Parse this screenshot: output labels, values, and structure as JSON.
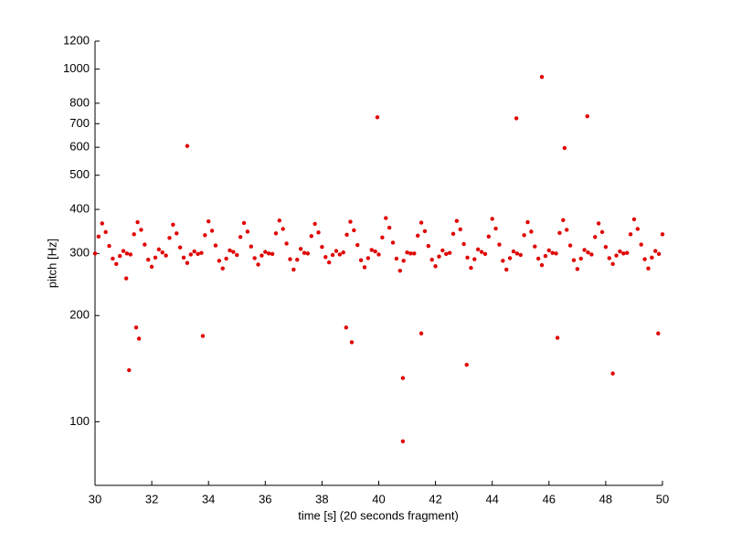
{
  "chart_data": {
    "type": "scatter",
    "xlabel": "time [s] (20 seconds fragment)",
    "ylabel": "pitch [Hz]",
    "xlim": [
      30,
      50
    ],
    "xticks": [
      30,
      32,
      34,
      36,
      38,
      40,
      42,
      44,
      46,
      48,
      50
    ],
    "ylim": [
      66,
      1200
    ],
    "yticks": [
      100,
      200,
      300,
      400,
      500,
      600,
      700,
      800,
      1000,
      1200
    ],
    "log_y": true,
    "grid": false,
    "series": [
      {
        "color": "#e00000",
        "x": [
          30,
          30.125,
          30.25,
          30.375,
          30.5,
          30.625,
          30.75,
          30.875,
          31,
          31.125,
          31.25,
          31.375,
          31.5,
          31.625,
          31.75,
          31.875,
          32,
          32.125,
          32.25,
          32.375,
          32.5,
          32.625,
          32.75,
          32.875,
          33,
          33.125,
          33.25,
          33.375,
          33.5,
          33.625,
          33.75,
          33.875,
          34,
          34.125,
          34.25,
          34.375,
          34.5,
          34.625,
          34.75,
          34.875,
          35,
          35.125,
          35.25,
          35.375,
          35.5,
          35.625,
          35.75,
          35.875,
          36,
          36.125,
          36.25,
          36.375,
          36.5,
          36.625,
          36.75,
          36.875,
          37,
          37.125,
          37.25,
          37.375,
          37.5,
          37.625,
          37.75,
          37.875,
          38,
          38.125,
          38.25,
          38.375,
          38.5,
          38.625,
          38.75,
          38.875,
          39,
          39.125,
          39.25,
          39.375,
          39.5,
          39.625,
          39.75,
          39.875,
          40,
          40.125,
          40.25,
          40.375,
          40.5,
          40.625,
          40.75,
          40.875,
          41,
          41.125,
          41.25,
          41.375,
          41.5,
          41.625,
          41.75,
          41.875,
          42,
          42.125,
          42.25,
          42.375,
          42.5,
          42.625,
          42.75,
          42.875,
          43,
          43.125,
          43.25,
          43.375,
          43.5,
          43.625,
          43.75,
          43.875,
          44,
          44.125,
          44.25,
          44.375,
          44.5,
          44.625,
          44.75,
          44.875,
          45,
          45.125,
          45.25,
          45.375,
          45.5,
          45.625,
          45.75,
          45.875,
          46,
          46.125,
          46.25,
          46.375,
          46.5,
          46.625,
          46.75,
          46.875,
          47,
          47.125,
          47.25,
          47.375,
          47.5,
          47.625,
          47.75,
          47.875,
          48,
          48.125,
          48.25,
          48.375,
          48.5,
          48.625,
          48.75,
          48.875,
          49,
          49.125,
          49.25,
          49.375,
          49.5,
          49.625,
          49.75,
          49.875,
          50,
          31.1,
          31.2,
          31.45,
          31.55,
          33.25,
          33.8,
          38.85,
          39.05,
          39.95,
          40.85,
          40.85,
          41.5,
          43.1,
          44.85,
          45.75,
          46.3,
          46.55,
          47.35,
          48.25,
          49.85
        ],
        "values": [
          300,
          335,
          365,
          345,
          315,
          290,
          280,
          295,
          305,
          300,
          298,
          340,
          368,
          350,
          318,
          288,
          275,
          292,
          308,
          302,
          296,
          332,
          362,
          342,
          312,
          292,
          282,
          298,
          304,
          299,
          301,
          338,
          370,
          348,
          316,
          286,
          272,
          290,
          306,
          303,
          297,
          334,
          366,
          346,
          314,
          291,
          279,
          296,
          303,
          300,
          299,
          342,
          372,
          352,
          320,
          289,
          270,
          288,
          309,
          301,
          300,
          336,
          364,
          344,
          313,
          293,
          283,
          297,
          305,
          298,
          302,
          339,
          369,
          349,
          317,
          287,
          274,
          291,
          307,
          304,
          298,
          333,
          378,
          355,
          322,
          290,
          268,
          286,
          302,
          300,
          300,
          337,
          367,
          347,
          315,
          288,
          276,
          294,
          306,
          299,
          301,
          341,
          371,
          351,
          319,
          292,
          273,
          289,
          308,
          303,
          299,
          335,
          376,
          353,
          318,
          286,
          270,
          291,
          304,
          300,
          297,
          338,
          368,
          346,
          314,
          290,
          278,
          295,
          306,
          301,
          300,
          343,
          373,
          350,
          316,
          287,
          271,
          290,
          307,
          302,
          298,
          334,
          365,
          345,
          313,
          291,
          280,
          296,
          304,
          300,
          301,
          340,
          375,
          352,
          318,
          289,
          272,
          292,
          305,
          299,
          340,
          255,
          140,
          185,
          172,
          605,
          175,
          185,
          168,
          730,
          133,
          88,
          178,
          145,
          725,
          950,
          173,
          597,
          735,
          137,
          178
        ]
      }
    ]
  }
}
